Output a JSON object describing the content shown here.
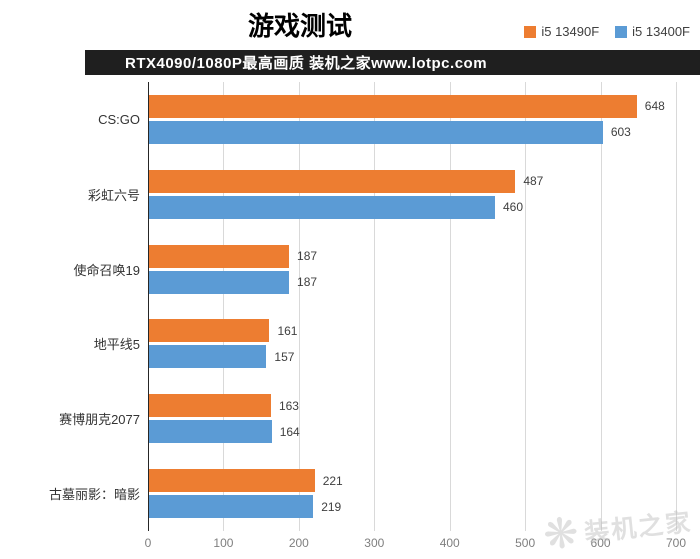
{
  "header": {
    "title": "游戏测试",
    "subtitle": "RTX4090/1080P最高画质 装机之家www.lotpc.com"
  },
  "legend": [
    {
      "label": "i5 13490F",
      "color": "#ed7d31"
    },
    {
      "label": "i5 13400F",
      "color": "#5b9bd5"
    }
  ],
  "chart_data": {
    "type": "bar",
    "orientation": "horizontal",
    "title": "游戏测试",
    "subtitle": "RTX4090/1080P最高画质 装机之家www.lotpc.com",
    "categories": [
      "CS:GO",
      "彩虹六号",
      "使命召唤19",
      "地平线5",
      "赛博朋克2077",
      "古墓丽影：暗影"
    ],
    "series": [
      {
        "name": "i5 13490F",
        "color": "#ed7d31",
        "values": [
          648,
          487,
          187,
          161,
          163,
          221
        ]
      },
      {
        "name": "i5 13400F",
        "color": "#5b9bd5",
        "values": [
          603,
          460,
          187,
          157,
          164,
          219
        ]
      }
    ],
    "xlim": [
      0,
      700
    ],
    "xticks": [
      0,
      100,
      200,
      300,
      400,
      500,
      600,
      700
    ],
    "grid": true,
    "legend_position": "top-right",
    "value_labels": true
  },
  "watermark": {
    "icon": "snowflake-icon",
    "text": "装机之家"
  }
}
